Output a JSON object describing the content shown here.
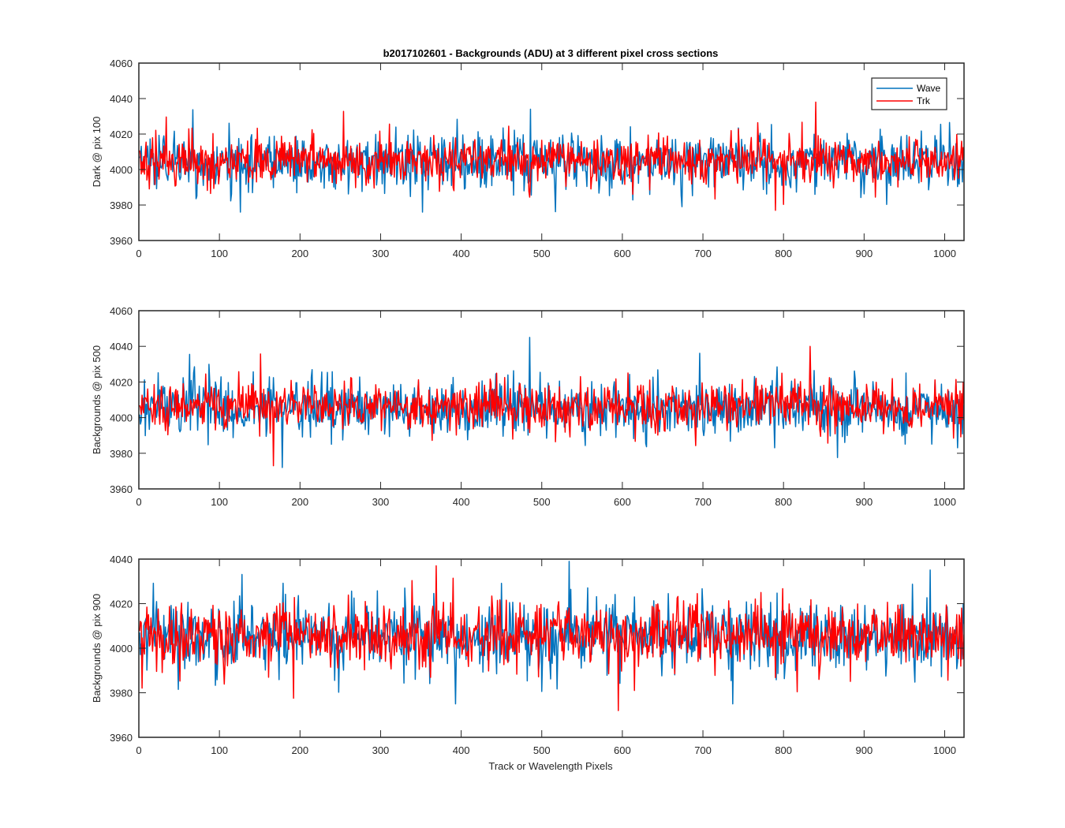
{
  "chart_data": {
    "title": "b2017102601 - Backgrounds (ADU) at 3 different pixel cross sections",
    "xlabel": "Track or Wavelength Pixels",
    "colors": {
      "wave": "#0072BD",
      "trk": "#FF0000"
    },
    "legend": {
      "placement": "top-right",
      "entries": [
        "Wave",
        "Trk"
      ]
    },
    "panels": [
      {
        "type": "line",
        "ylabel": "Dark @ pix 100",
        "xlim": [
          0,
          1024
        ],
        "ylim": [
          3960,
          4060
        ],
        "xticks": [
          0,
          100,
          200,
          300,
          400,
          500,
          600,
          700,
          800,
          900,
          1000
        ],
        "yticks": [
          3960,
          3980,
          4000,
          4020,
          4040,
          4060
        ],
        "series": [
          {
            "name": "Wave",
            "mean": 4004,
            "std": 9,
            "min": 3976,
            "max": 4034,
            "n": 1024
          },
          {
            "name": "Trk",
            "mean": 4005,
            "std": 7.5,
            "min": 3977,
            "max": 4038,
            "n": 1024
          }
        ]
      },
      {
        "type": "line",
        "ylabel": "Backgrounds @ pix 500",
        "xlim": [
          0,
          1024
        ],
        "ylim": [
          3960,
          4060
        ],
        "xticks": [
          0,
          100,
          200,
          300,
          400,
          500,
          600,
          700,
          800,
          900,
          1000
        ],
        "yticks": [
          3960,
          3980,
          4000,
          4020,
          4040,
          4060
        ],
        "series": [
          {
            "name": "Wave",
            "mean": 4005,
            "std": 9,
            "min": 3972,
            "max": 4045,
            "n": 1024
          },
          {
            "name": "Trk",
            "mean": 4006,
            "std": 7.5,
            "min": 3973,
            "max": 4040,
            "n": 1024
          }
        ]
      },
      {
        "type": "line",
        "ylabel": "Backgrounds @ pix 900",
        "xlim": [
          0,
          1024
        ],
        "ylim": [
          3960,
          4040
        ],
        "xticks": [
          0,
          100,
          200,
          300,
          400,
          500,
          600,
          700,
          800,
          900,
          1000
        ],
        "yticks": [
          3960,
          3980,
          4000,
          4020,
          4040
        ],
        "series": [
          {
            "name": "Wave",
            "mean": 4005,
            "std": 9,
            "min": 3975,
            "max": 4039,
            "n": 1024
          },
          {
            "name": "Trk",
            "mean": 4006,
            "std": 8,
            "min": 3972,
            "max": 4037,
            "n": 1024
          }
        ]
      }
    ]
  }
}
